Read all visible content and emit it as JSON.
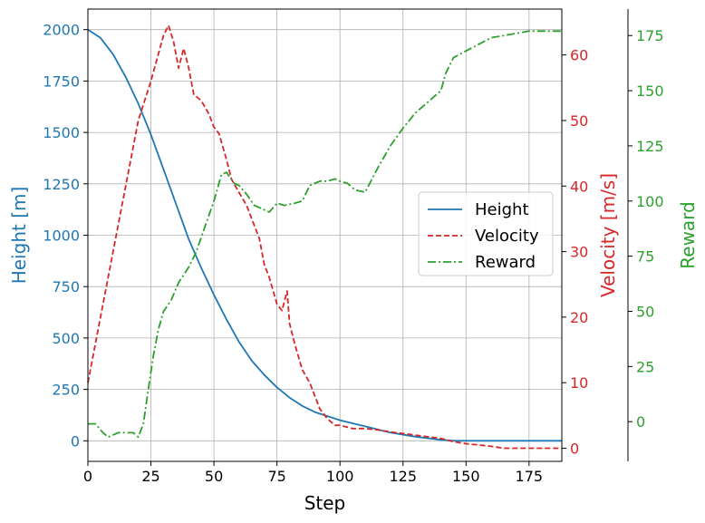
{
  "chart_data": {
    "type": "line",
    "title": "",
    "xlabel": "Step",
    "xlim": [
      0,
      188
    ],
    "x_ticks": [
      0,
      25,
      50,
      75,
      100,
      125,
      150,
      175
    ],
    "grid": true,
    "legend_position": "center-right",
    "axes": {
      "left": {
        "label": "Height [m]",
        "color": "#1f77b4",
        "range": [
          -100,
          2100
        ],
        "ticks": [
          0,
          250,
          500,
          750,
          1000,
          1250,
          1500,
          1750,
          2000
        ]
      },
      "right1": {
        "label": "Velocity [m/s]",
        "color": "#d62728",
        "range": [
          -2,
          67
        ],
        "ticks": [
          0,
          10,
          20,
          30,
          40,
          50,
          60
        ]
      },
      "right2": {
        "label": "Reward",
        "color": "#2ca02c",
        "range": [
          -18,
          187
        ],
        "ticks": [
          0,
          25,
          50,
          75,
          100,
          125,
          150,
          175
        ]
      }
    },
    "series": [
      {
        "name": "Height",
        "axis": "left",
        "color": "#1f77b4",
        "style": "solid",
        "x": [
          0,
          5,
          10,
          15,
          20,
          25,
          30,
          35,
          40,
          45,
          50,
          55,
          60,
          65,
          70,
          75,
          80,
          85,
          90,
          95,
          100,
          110,
          120,
          130,
          140,
          145,
          150,
          160,
          170,
          180,
          188
        ],
        "y": [
          2000,
          1960,
          1880,
          1770,
          1640,
          1490,
          1320,
          1150,
          980,
          840,
          710,
          590,
          480,
          390,
          320,
          260,
          210,
          170,
          140,
          120,
          100,
          70,
          40,
          20,
          5,
          0,
          0,
          0,
          0,
          0,
          0
        ]
      },
      {
        "name": "Velocity",
        "axis": "right1",
        "color": "#d62728",
        "style": "dashed",
        "x": [
          0,
          5,
          10,
          15,
          20,
          25,
          30,
          32,
          34,
          36,
          38,
          40,
          42,
          45,
          48,
          50,
          52,
          55,
          57,
          60,
          63,
          65,
          68,
          70,
          72,
          75,
          77,
          79,
          80,
          82,
          85,
          88,
          90,
          92,
          95,
          98,
          100,
          105,
          110,
          115,
          120,
          130,
          140,
          145,
          150,
          155,
          160,
          165,
          170,
          175,
          180,
          188
        ],
        "y": [
          10,
          20,
          30,
          40,
          50,
          56,
          63,
          64.5,
          62,
          58,
          61,
          58,
          54,
          53,
          51,
          49,
          48,
          44,
          41,
          39,
          37,
          35,
          32,
          28,
          26,
          22,
          21,
          24,
          19,
          16,
          12,
          10,
          8,
          6,
          4.5,
          3.5,
          3.5,
          3,
          3,
          2.8,
          2.5,
          2,
          1.5,
          1,
          0.7,
          0.5,
          0.3,
          0,
          0,
          0,
          0,
          0
        ]
      },
      {
        "name": "Reward",
        "axis": "right2",
        "color": "#2ca02c",
        "style": "dashdot",
        "x": [
          0,
          3,
          6,
          8,
          12,
          15,
          18,
          20,
          22,
          24,
          26,
          28,
          30,
          33,
          36,
          40,
          43,
          46,
          50,
          53,
          55,
          58,
          60,
          63,
          66,
          70,
          72,
          75,
          78,
          82,
          85,
          88,
          92,
          95,
          98,
          100,
          103,
          106,
          110,
          115,
          120,
          125,
          130,
          135,
          140,
          142,
          145,
          150,
          155,
          160,
          165,
          170,
          175,
          180,
          188
        ],
        "y": [
          -1,
          -1,
          -5,
          -7,
          -5,
          -5,
          -5,
          -7,
          -1,
          15,
          30,
          42,
          50,
          55,
          63,
          70,
          77,
          87,
          100,
          112,
          113,
          108,
          107,
          103,
          98,
          96,
          95,
          99,
          98,
          99,
          100,
          107,
          109,
          109,
          110,
          109,
          108,
          105,
          104,
          115,
          125,
          133,
          140,
          145,
          150,
          158,
          165,
          168,
          171,
          174,
          175,
          176,
          177,
          177,
          177
        ]
      }
    ]
  }
}
